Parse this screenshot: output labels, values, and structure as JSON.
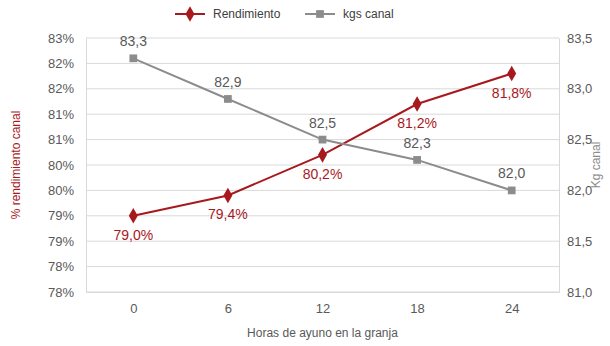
{
  "chart_data": {
    "type": "line",
    "categories": [
      "0",
      "6",
      "12",
      "18",
      "24"
    ],
    "x_label": "Horas de ayuno en la granja",
    "y_label": "% rendimiento canal",
    "y2_label": "Kg canal",
    "ylim": [
      77.5,
      82.5
    ],
    "yticks": [
      {
        "value": 77.5,
        "label": "78%"
      },
      {
        "value": 78,
        "label": "78%"
      },
      {
        "value": 78.5,
        "label": "79%"
      },
      {
        "value": 79,
        "label": "79%"
      },
      {
        "value": 79.5,
        "label": "80%"
      },
      {
        "value": 80,
        "label": "80%"
      },
      {
        "value": 80.5,
        "label": "81%"
      },
      {
        "value": 81,
        "label": "81%"
      },
      {
        "value": 81.5,
        "label": "82%"
      },
      {
        "value": 82,
        "label": "82%"
      },
      {
        "value": 82.5,
        "label": "83%"
      }
    ],
    "y2lim": [
      81.0,
      83.5
    ],
    "y2ticks": [
      {
        "value": 81.0,
        "label": "81,0"
      },
      {
        "value": 81.5,
        "label": "81,5"
      },
      {
        "value": 82.0,
        "label": "82,0"
      },
      {
        "value": 82.5,
        "label": "82,5"
      },
      {
        "value": 83.0,
        "label": "83,0"
      },
      {
        "value": 83.5,
        "label": "83,5"
      }
    ],
    "grid": true,
    "legend": "top",
    "data_labels": true,
    "series": [
      {
        "name": "Rendimiento",
        "color": "#a8191e",
        "marker": "diamond",
        "line_style": "solid",
        "values": [
          79.0,
          79.4,
          80.2,
          81.2,
          81.8
        ],
        "value_labels": [
          "79,0%",
          "79,4%",
          "80,2%",
          "81,2%",
          "81,8%"
        ]
      },
      {
        "name": "kgs canal",
        "color": "#8c8c8c",
        "marker": "square",
        "line_style": "solid",
        "axis": "y2",
        "values": [
          83.3,
          82.9,
          82.5,
          82.3,
          82.0
        ],
        "value_labels": [
          "83,3",
          "82,9",
          "82,5",
          "82,3",
          "82,0"
        ]
      }
    ]
  }
}
